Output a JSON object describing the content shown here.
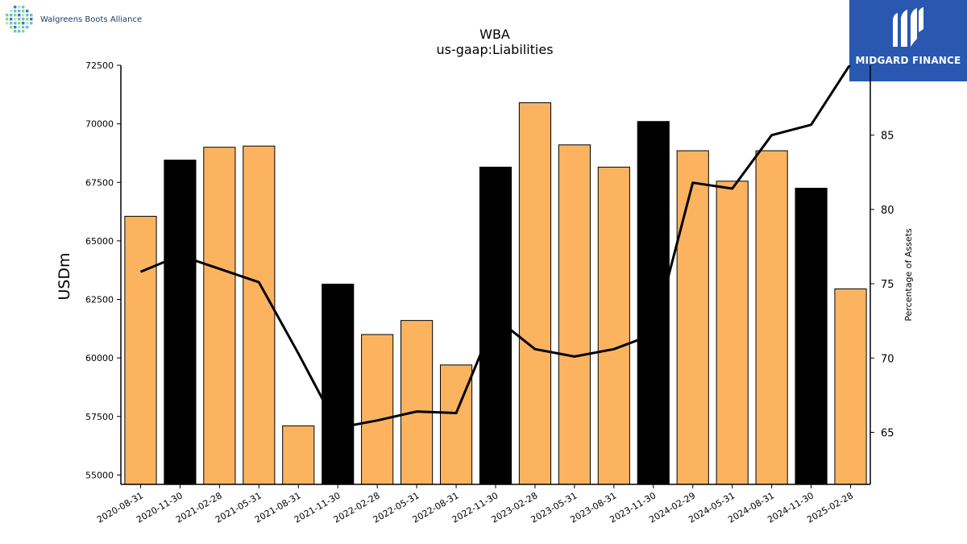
{
  "logos": {
    "left_brand": "Walgreens Boots Alliance",
    "right_brand": "MIDGARD FINANCE",
    "left_icon": "wba-logo-icon",
    "right_icon": "midgard-logo-icon"
  },
  "colors": {
    "bar_default": "#fbb360",
    "bar_highlight": "#000000",
    "line": "#000000",
    "axis": "#000000",
    "right_logo_bg": "#2a58b0"
  },
  "chart_data": {
    "type": "bar",
    "title": "WBA",
    "subtitle": "us-gaap:Liabilities",
    "ylabel": "USDm",
    "y2label": "Percentage of Assets",
    "ylim": [
      54600,
      72500
    ],
    "y2lim": [
      61.5,
      89.7
    ],
    "yticks": [
      55000,
      57500,
      60000,
      62500,
      65000,
      67500,
      70000,
      72500
    ],
    "y2ticks": [
      65,
      70,
      75,
      80,
      85
    ],
    "categories": [
      "2020-08-31",
      "2020-11-30",
      "2021-02-28",
      "2021-05-31",
      "2021-08-31",
      "2021-11-30",
      "2022-02-28",
      "2022-05-31",
      "2022-08-31",
      "2022-11-30",
      "2023-02-28",
      "2023-05-31",
      "2023-08-31",
      "2023-11-30",
      "2024-02-29",
      "2024-05-31",
      "2024-08-31",
      "2024-11-30",
      "2025-02-28"
    ],
    "series": [
      {
        "type": "bar",
        "values": [
          66050,
          68450,
          69000,
          69050,
          57100,
          63150,
          61000,
          61600,
          59700,
          68150,
          70900,
          69100,
          68150,
          70100,
          68850,
          67550,
          68850,
          67250,
          62950
        ],
        "highlighted": [
          false,
          true,
          false,
          false,
          false,
          true,
          false,
          false,
          false,
          true,
          false,
          false,
          false,
          true,
          false,
          false,
          false,
          true,
          false
        ]
      },
      {
        "type": "line",
        "axis": "right",
        "values": [
          75.8,
          76.9,
          76.0,
          75.1,
          70.3,
          65.3,
          65.8,
          66.4,
          66.3,
          72.7,
          70.6,
          70.1,
          70.6,
          71.6,
          81.8,
          81.4,
          85.0,
          85.7,
          89.8
        ]
      }
    ],
    "legend": "none",
    "grid": false
  }
}
